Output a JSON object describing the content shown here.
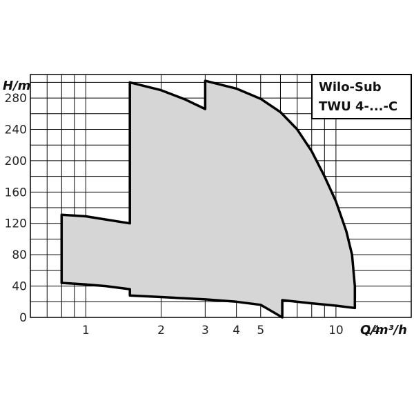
{
  "chart_data": {
    "type": "area",
    "title": "",
    "legend_lines": [
      "Wilo-Sub",
      "TWU 4-...-C"
    ],
    "legend_placement": "top-right",
    "xlabel": "Q/m³/h",
    "ylabel": "H/m",
    "x_scale": "log",
    "xlim": [
      0.6,
      20
    ],
    "ylim": [
      0,
      310
    ],
    "grid": true,
    "x_ticks": [
      1,
      2,
      3,
      4,
      5,
      10,
      14
    ],
    "y_ticks": [
      0,
      40,
      80,
      120,
      160,
      200,
      240,
      280
    ],
    "colors": {
      "fill": "#d6d6d6",
      "outline": "#000000",
      "grid": "#000000"
    },
    "series": [
      {
        "points": [
          [
            0.8,
            131
          ],
          [
            1.0,
            129
          ],
          [
            1.2,
            125
          ],
          [
            1.5,
            120
          ],
          [
            1.5,
            300
          ],
          [
            2.0,
            290
          ],
          [
            2.5,
            278
          ],
          [
            3.0,
            266
          ],
          [
            3.0,
            302
          ],
          [
            4.0,
            292
          ],
          [
            5.0,
            279
          ],
          [
            6.0,
            262
          ],
          [
            7.0,
            240
          ],
          [
            8.0,
            212
          ],
          [
            9.0,
            180
          ],
          [
            10.0,
            148
          ],
          [
            11.0,
            110
          ],
          [
            11.6,
            80
          ],
          [
            11.9,
            40
          ],
          [
            11.9,
            12
          ],
          [
            10.0,
            15
          ],
          [
            8.0,
            18
          ],
          [
            6.1,
            22
          ],
          [
            6.1,
            0
          ],
          [
            5.0,
            16
          ],
          [
            4.0,
            20
          ],
          [
            3.0,
            23
          ],
          [
            2.0,
            26
          ],
          [
            1.5,
            28
          ],
          [
            1.5,
            36
          ],
          [
            1.2,
            40
          ],
          [
            1.0,
            42
          ],
          [
            0.8,
            44
          ]
        ]
      }
    ]
  }
}
